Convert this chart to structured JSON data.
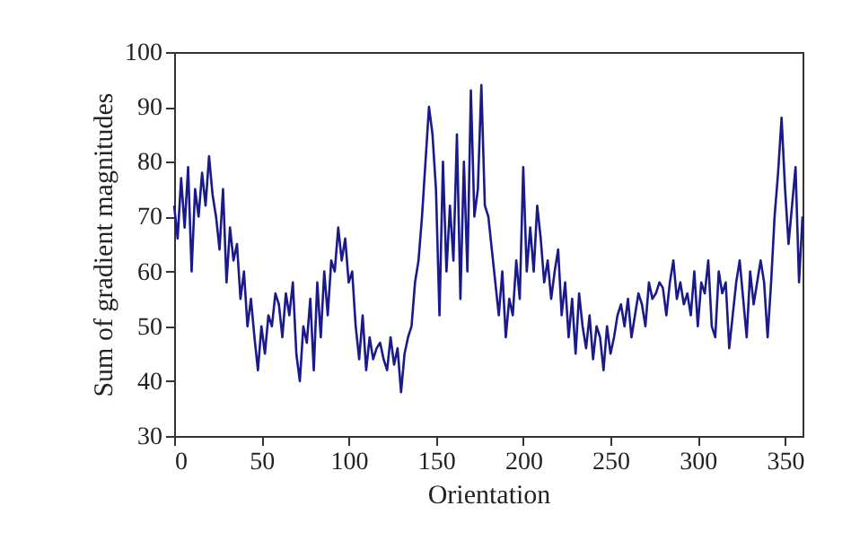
{
  "chart_data": {
    "type": "line",
    "xlabel": "Orientation",
    "ylabel": "Sum of gradient magnitudes",
    "x": [
      0,
      2,
      4,
      6,
      8,
      10,
      12,
      14,
      16,
      18,
      20,
      22,
      24,
      26,
      28,
      30,
      32,
      34,
      36,
      38,
      40,
      42,
      44,
      46,
      48,
      50,
      52,
      54,
      56,
      58,
      60,
      62,
      64,
      66,
      68,
      70,
      72,
      74,
      76,
      78,
      80,
      82,
      84,
      86,
      88,
      90,
      92,
      94,
      96,
      98,
      100,
      102,
      104,
      106,
      108,
      110,
      112,
      114,
      116,
      118,
      120,
      122,
      124,
      126,
      128,
      130,
      132,
      134,
      136,
      138,
      140,
      142,
      144,
      146,
      148,
      150,
      152,
      154,
      156,
      158,
      160,
      162,
      164,
      166,
      168,
      170,
      172,
      174,
      176,
      178,
      180,
      182,
      184,
      186,
      188,
      190,
      192,
      194,
      196,
      198,
      200,
      202,
      204,
      206,
      208,
      210,
      212,
      214,
      216,
      218,
      220,
      222,
      224,
      226,
      228,
      230,
      232,
      234,
      236,
      238,
      240,
      242,
      244,
      246,
      248,
      250,
      252,
      254,
      256,
      258,
      260,
      262,
      264,
      266,
      268,
      270,
      272,
      274,
      276,
      278,
      280,
      282,
      284,
      286,
      288,
      290,
      292,
      294,
      296,
      298,
      300,
      302,
      304,
      306,
      308,
      310,
      312,
      314,
      316,
      318,
      320,
      322,
      324,
      326,
      328,
      330,
      332,
      334,
      336,
      338,
      340,
      342,
      344,
      346,
      348,
      350,
      352,
      354,
      356,
      358,
      360
    ],
    "series": [
      {
        "color": "#1a1a8c",
        "values": [
          72,
          66,
          77,
          68,
          79,
          60,
          75,
          70,
          78,
          72,
          81,
          74,
          70,
          64,
          75,
          58,
          68,
          62,
          65,
          55,
          60,
          50,
          55,
          48,
          42,
          50,
          45,
          52,
          50,
          56,
          54,
          48,
          56,
          52,
          58,
          45,
          40,
          50,
          47,
          55,
          42,
          58,
          48,
          60,
          52,
          62,
          60,
          68,
          62,
          66,
          58,
          60,
          50,
          44,
          52,
          42,
          48,
          44,
          46,
          47,
          44,
          42,
          48,
          43,
          46,
          38,
          45,
          48,
          50,
          58,
          62,
          70,
          80,
          90,
          85,
          75,
          52,
          80,
          60,
          72,
          62,
          85,
          55,
          80,
          60,
          93,
          70,
          75,
          94,
          72,
          70,
          64,
          58,
          52,
          60,
          48,
          55,
          52,
          62,
          55,
          79,
          60,
          68,
          60,
          72,
          66,
          58,
          62,
          55,
          60,
          64,
          52,
          58,
          48,
          55,
          45,
          56,
          50,
          46,
          52,
          44,
          50,
          48,
          42,
          50,
          45,
          48,
          52,
          54,
          50,
          55,
          48,
          52,
          56,
          54,
          50,
          58,
          55,
          56,
          58,
          57,
          52,
          58,
          62,
          55,
          58,
          54,
          56,
          52,
          60,
          50,
          58,
          56,
          62,
          50,
          48,
          60,
          56,
          58,
          46,
          52,
          58,
          62,
          55,
          48,
          60,
          54,
          58,
          62,
          58,
          48,
          58,
          70,
          78,
          88,
          75,
          65,
          72,
          79,
          58,
          70
        ]
      }
    ],
    "xlim": [
      0,
      360
    ],
    "xticks": [
      0,
      50,
      100,
      150,
      200,
      250,
      300,
      350
    ],
    "ylim": [
      30,
      100
    ],
    "yticks": [
      30,
      40,
      50,
      60,
      70,
      80,
      90,
      100
    ],
    "grid": false,
    "marker": "none",
    "line_style": "solid"
  }
}
